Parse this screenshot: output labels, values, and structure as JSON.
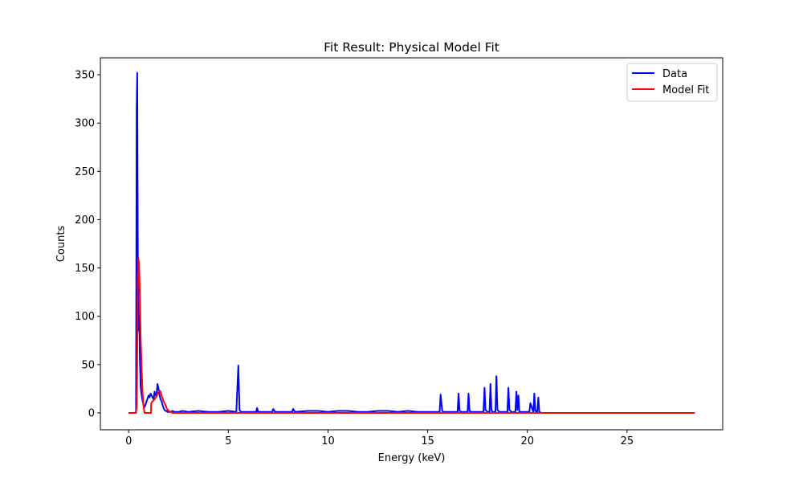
{
  "chart_data": {
    "type": "line",
    "title": "Fit Result: Physical Model Fit",
    "xlabel": "Energy (keV)",
    "ylabel": "Counts",
    "xlim": [
      -1.42,
      29.8
    ],
    "ylim": [
      -17.5,
      367.5
    ],
    "xticks": [
      0,
      5,
      10,
      15,
      20,
      25
    ],
    "yticks": [
      0,
      50,
      100,
      150,
      200,
      250,
      300,
      350
    ],
    "grid": false,
    "legend": "top-right",
    "series": [
      {
        "name": "Data",
        "color": "#0000ff",
        "x": [
          0.0,
          0.3,
          0.37,
          0.4,
          0.43,
          0.46,
          0.5,
          0.53,
          0.56,
          0.6,
          0.65,
          0.7,
          0.75,
          0.8,
          0.85,
          0.9,
          0.95,
          1.0,
          1.05,
          1.1,
          1.15,
          1.2,
          1.25,
          1.3,
          1.35,
          1.4,
          1.45,
          1.5,
          1.55,
          1.6,
          1.65,
          1.7,
          1.75,
          1.8,
          1.85,
          1.9,
          1.95,
          2.0,
          2.1,
          2.2,
          2.3,
          2.5,
          2.7,
          3.0,
          3.5,
          4.0,
          4.5,
          5.0,
          5.4,
          5.5,
          5.56,
          5.62,
          5.7,
          6.0,
          6.4,
          6.44,
          6.5,
          7.0,
          7.2,
          7.25,
          7.35,
          8.0,
          8.2,
          8.25,
          8.35,
          9.0,
          9.5,
          10.0,
          10.5,
          11.0,
          11.5,
          12.0,
          12.5,
          13.0,
          13.5,
          14.0,
          14.5,
          15.0,
          15.6,
          15.65,
          15.73,
          15.8,
          16.2,
          16.5,
          16.55,
          16.6,
          16.7,
          17.0,
          17.05,
          17.1,
          17.2,
          17.8,
          17.85,
          17.9,
          18.0,
          18.1,
          18.15,
          18.2,
          18.25,
          18.4,
          18.45,
          18.5,
          18.6,
          19.0,
          19.05,
          19.1,
          19.2,
          19.4,
          19.45,
          19.5,
          19.55,
          19.6,
          19.7,
          20.1,
          20.15,
          20.3,
          20.35,
          20.4,
          20.5,
          20.55,
          20.6,
          20.7
        ],
        "y": [
          0,
          0,
          0,
          315,
          352,
          150,
          85,
          100,
          55,
          28,
          18,
          12,
          8,
          6,
          9,
          12,
          15,
          18,
          16,
          20,
          18,
          16,
          14,
          22,
          18,
          20,
          30,
          25,
          18,
          14,
          12,
          8,
          5,
          3,
          2,
          2,
          1,
          1,
          1,
          2,
          1,
          1,
          2,
          1,
          2,
          1,
          1,
          2,
          1,
          49,
          3,
          1,
          1,
          1,
          1,
          5,
          1,
          1,
          1,
          4,
          1,
          1,
          1,
          4,
          1,
          2,
          2,
          1,
          2,
          2,
          1,
          1,
          2,
          2,
          1,
          2,
          1,
          1,
          1,
          19,
          2,
          1,
          1,
          1,
          20,
          2,
          1,
          1,
          20,
          2,
          1,
          1,
          26,
          3,
          1,
          1,
          30,
          3,
          1,
          1,
          38,
          3,
          1,
          1,
          26,
          3,
          1,
          1,
          22,
          3,
          18,
          1,
          1,
          1,
          10,
          1,
          20,
          2,
          1,
          16,
          1,
          0
        ]
      },
      {
        "name": "Model Fit",
        "color": "#ff0000",
        "x": [
          0.0,
          0.35,
          0.4,
          0.42,
          0.45,
          0.48,
          0.52,
          0.56,
          0.6,
          0.65,
          0.7,
          0.75,
          0.8,
          1.12,
          1.13,
          1.2,
          1.3,
          1.4,
          1.45,
          1.5,
          1.55,
          1.6,
          1.65,
          1.7,
          1.75,
          1.8,
          1.85,
          1.9,
          2.0,
          2.2,
          5.0,
          10.0,
          20.0,
          28.4
        ],
        "y": [
          0,
          0,
          5,
          40,
          120,
          160,
          155,
          120,
          80,
          45,
          20,
          5,
          0,
          0,
          10,
          12,
          14,
          17,
          20,
          22,
          23,
          22,
          18,
          15,
          12,
          10,
          8,
          5,
          2,
          0,
          0,
          0,
          0,
          0
        ]
      }
    ]
  }
}
